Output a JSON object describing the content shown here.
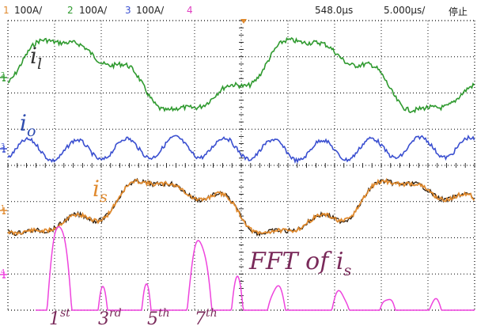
{
  "status_bar": {
    "channels": [
      {
        "number": "1",
        "scale": "100A/",
        "color": "#e08a2e"
      },
      {
        "number": "2",
        "scale": "100A/",
        "color": "#2f9a2f"
      },
      {
        "number": "3",
        "scale": "100A/",
        "color": "#3a4fd0"
      },
      {
        "number": "4",
        "scale": "",
        "color": "#e040c0"
      }
    ],
    "horizontal_position": "548.0µs",
    "timebase": "5.000µs/",
    "run_state": "停止"
  },
  "annotations": {
    "i_l": {
      "base": "i",
      "sub": "l"
    },
    "i_o": {
      "base": "i",
      "sub": "o"
    },
    "i_s": {
      "base": "i",
      "sub": "s"
    },
    "fft": {
      "main": "FFT of i",
      "sub": "s"
    }
  },
  "harmonics": [
    {
      "num": "1",
      "suffix": "st"
    },
    {
      "num": "3",
      "suffix": "rd"
    },
    {
      "num": "5",
      "suffix": "th"
    },
    {
      "num": "7",
      "suffix": "th"
    }
  ],
  "colors": {
    "ch1_trace": "#e08a2e",
    "ch2_trace": "#2f9a2f",
    "ch3_trace": "#3a4fd0",
    "ch4_trace": "#ee44dd",
    "grid": "#000000",
    "label_il": "#333333",
    "label_io": "#2f4db0",
    "label_is": "#e08a2e",
    "label_fft": "#7a2a5a"
  },
  "icons": [
    "ch2-ground-marker-icon",
    "ch3-ground-marker-icon",
    "ch1-ground-marker-icon",
    "ch4-ground-marker-icon",
    "trigger-position-marker-icon"
  ]
}
